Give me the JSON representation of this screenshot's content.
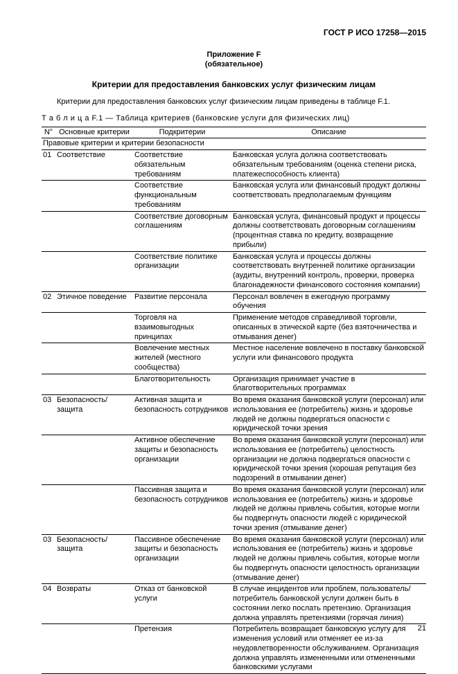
{
  "doc_id": "ГОСТ Р ИСО 17258—2015",
  "annex_line1": "Приложение F",
  "annex_line2": "(обязательное)",
  "title": "Критерии для предоставления банковских услуг физическим лицам",
  "intro": "Критерии для предоставления банковских услуг физическим лицам приведены в таблице F.1.",
  "table_caption": "Т а б л и ц а  F.1 — Таблица критериев (банковские услуги для физических лиц)",
  "headers": {
    "n": "N°",
    "main": "Основные критерии",
    "sub": "Подкритерии",
    "desc": "Описание"
  },
  "section1": "Правовые критерии и критерии безопасности",
  "rows": [
    {
      "n": "01",
      "main": "Соответствие",
      "sub": "Соответствие обязательным требованиям",
      "desc": "Банковская услуга должна соответствовать обязательным требованиям (оценка степени риска, платежеспособность клиента)"
    },
    {
      "n": "",
      "main": "",
      "sub": "Соответствие функциональным требованиям",
      "desc": "Банковская услуга или финансовый продукт должны соответствовать предполагаемым функциям"
    },
    {
      "n": "",
      "main": "",
      "sub": "Соответствие договорным соглашениям",
      "desc": "Банковская услуга, финансовый продукт и процессы должны соответствовать договорным соглашениям (процентная ставка по кредиту, возвращение прибыли)"
    },
    {
      "n": "",
      "main": "",
      "sub": "Соответствие политике организации",
      "desc": "Банковская услуга и процессы должны соответствовать внутренней политике  организации (аудиты, внутренний контроль, проверки, проверка благонадежности финансового состояния компании)"
    },
    {
      "n": "02",
      "main": "Этичное поведение",
      "sub": "Развитие персонала",
      "desc": "Персонал вовлечен в ежегодную программу обучения"
    },
    {
      "n": "",
      "main": "",
      "sub": "Торговля на взаимовыгодных принципах",
      "desc": "Применение методов справедливой торговли, описанных в этической карте (без взяточничества  и отмывания денег)"
    },
    {
      "n": "",
      "main": "",
      "sub": "Вовлечение местных жителей (местного сообщества)",
      "desc": "Местное население вовлечено в поставку банковской услуги или финансового продукта"
    },
    {
      "n": "",
      "main": "",
      "sub": "Благотворительность",
      "desc": "Организация принимает участие в благотворительных программах"
    },
    {
      "n": "03",
      "main": "Безопасность/защита",
      "sub": "Активная защита и безопасность сотрудников",
      "desc": "Во время оказания банковской услуги (персонал) или использования ее (потребитель) жизнь и здоровье людей не должны подвергаться опасности с юридической точки зрения"
    },
    {
      "n": "",
      "main": "",
      "sub": "Активное обеспечение защиты и безопасность организации",
      "desc": "Во время оказания банковской услуги (персонал) или использования ее (потребитель) целостность организации не должна подвергаться опасности с юридической точки зрения (хорошая репутация без подозрений в отмывании денег)"
    },
    {
      "n": "",
      "main": "",
      "sub": "Пассивная защита и безопасность сотрудников",
      "desc": "Во время оказания банковской услуги (персонал) или использования ее (потребитель) жизнь и здоровье людей не должны привлечь события, которые могли бы подвергнуть опасности людей с юридической точки зрения (отмывание денег)"
    },
    {
      "n": "03",
      "main": "Безопасность/защита",
      "sub": "Пассивное обеспечение защиты и безопасность организации",
      "desc": "Во время оказания банковской услуги (персонал) или использования ее (потребитель) жизнь и здоровье людей не должны привлечь события, которые могли бы подвергнуть опасности целостность организации (отмывание денег)"
    },
    {
      "n": "04",
      "main": "Возвраты",
      "sub": "Отказ от банковской услуги",
      "desc": "В случае инцидентов или проблем, пользователь/потребитель банковской услуги должен быть в состоянии легко послать претензию. Организация должна управлять претензиями (горячая линия)"
    },
    {
      "n": "",
      "main": "",
      "sub": "Претензия",
      "desc": "Потребитель возвращает банковскую услугу для изменения условий или отменяет ее из-за неудовлетворенности обслуживанием. Организация должна управлять измененными или отмененными банковскими услугами"
    }
  ],
  "page_number": "21"
}
